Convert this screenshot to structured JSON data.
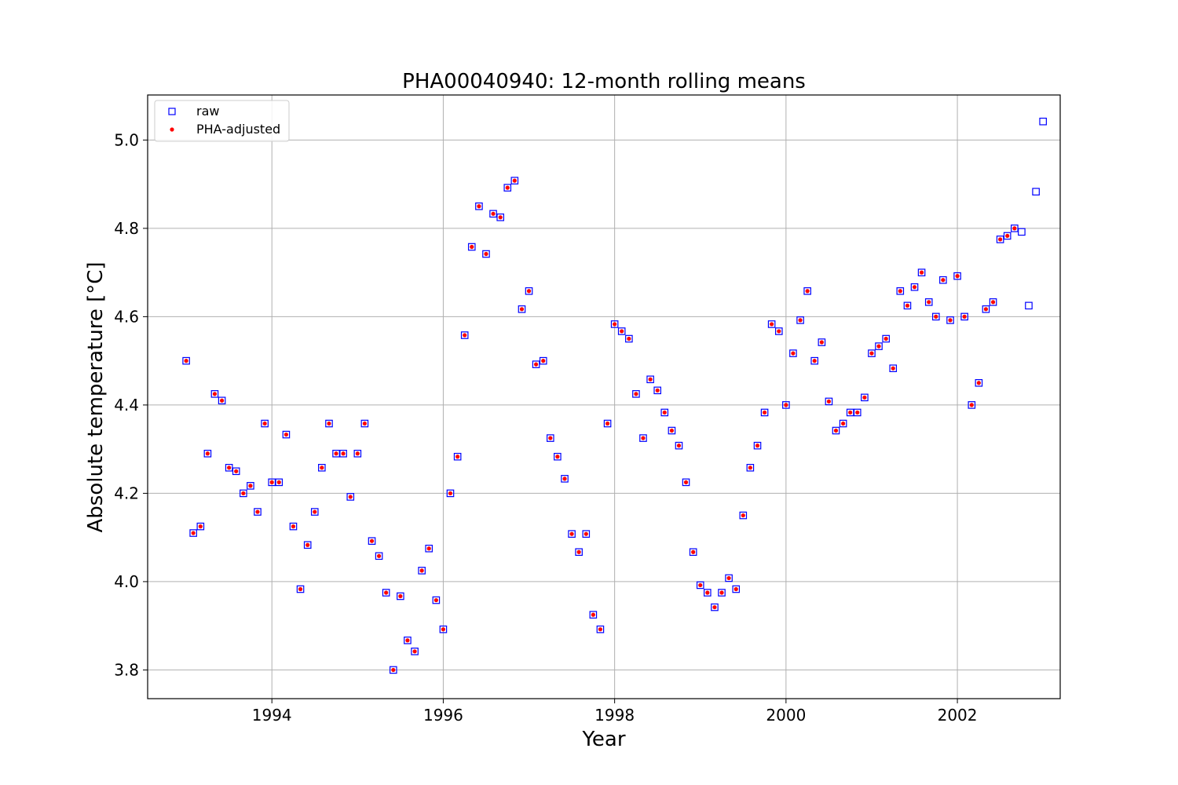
{
  "chart_data": {
    "type": "scatter",
    "title": "PHA00040940: 12-month rolling means",
    "xlabel": "Year",
    "ylabel": "Absolute temperature [°C]",
    "xlim": [
      1992.55,
      2003.2
    ],
    "ylim": [
      3.735,
      5.102
    ],
    "xticks": [
      1994,
      1996,
      1998,
      2000,
      2002
    ],
    "yticks": [
      3.8,
      4.0,
      4.2,
      4.4,
      4.6,
      4.8,
      5.0
    ],
    "ytick_labels": [
      "3.8",
      "4.0",
      "4.2",
      "4.4",
      "4.6",
      "4.8",
      "5.0"
    ],
    "grid": true,
    "legend_position": "top-left",
    "series": [
      {
        "name": "raw",
        "marker": "open-square",
        "color": "#0000ff",
        "points": [
          [
            1993.0,
            4.5
          ],
          [
            1993.083,
            4.11
          ],
          [
            1993.167,
            4.125
          ],
          [
            1993.25,
            4.29
          ],
          [
            1993.333,
            4.425
          ],
          [
            1993.417,
            4.41
          ],
          [
            1993.5,
            4.258
          ],
          [
            1993.583,
            4.25
          ],
          [
            1993.667,
            4.2
          ],
          [
            1993.75,
            4.217
          ],
          [
            1993.833,
            4.158
          ],
          [
            1993.917,
            4.358
          ],
          [
            1994.0,
            4.225
          ],
          [
            1994.083,
            4.225
          ],
          [
            1994.167,
            4.333
          ],
          [
            1994.25,
            4.125
          ],
          [
            1994.333,
            3.983
          ],
          [
            1994.417,
            4.083
          ],
          [
            1994.5,
            4.158
          ],
          [
            1994.583,
            4.258
          ],
          [
            1994.667,
            4.358
          ],
          [
            1994.75,
            4.29
          ],
          [
            1994.833,
            4.29
          ],
          [
            1994.917,
            4.192
          ],
          [
            1995.0,
            4.29
          ],
          [
            1995.083,
            4.358
          ],
          [
            1995.167,
            4.092
          ],
          [
            1995.25,
            4.058
          ],
          [
            1995.333,
            3.975
          ],
          [
            1995.417,
            3.8
          ],
          [
            1995.5,
            3.967
          ],
          [
            1995.583,
            3.867
          ],
          [
            1995.667,
            3.842
          ],
          [
            1995.75,
            4.025
          ],
          [
            1995.833,
            4.075
          ],
          [
            1995.917,
            3.958
          ],
          [
            1996.0,
            3.892
          ],
          [
            1996.083,
            4.2
          ],
          [
            1996.167,
            4.283
          ],
          [
            1996.25,
            4.558
          ],
          [
            1996.333,
            4.758
          ],
          [
            1996.417,
            4.85
          ],
          [
            1996.5,
            4.742
          ],
          [
            1996.583,
            4.833
          ],
          [
            1996.667,
            4.825
          ],
          [
            1996.75,
            4.892
          ],
          [
            1996.833,
            4.908
          ],
          [
            1996.917,
            4.617
          ],
          [
            1997.0,
            4.658
          ],
          [
            1997.083,
            4.492
          ],
          [
            1997.167,
            4.5
          ],
          [
            1997.25,
            4.325
          ],
          [
            1997.333,
            4.283
          ],
          [
            1997.417,
            4.233
          ],
          [
            1997.5,
            4.108
          ],
          [
            1997.583,
            4.067
          ],
          [
            1997.667,
            4.108
          ],
          [
            1997.75,
            3.925
          ],
          [
            1997.833,
            3.892
          ],
          [
            1997.917,
            4.358
          ],
          [
            1998.0,
            4.583
          ],
          [
            1998.083,
            4.567
          ],
          [
            1998.167,
            4.55
          ],
          [
            1998.25,
            4.425
          ],
          [
            1998.333,
            4.325
          ],
          [
            1998.417,
            4.458
          ],
          [
            1998.5,
            4.433
          ],
          [
            1998.583,
            4.383
          ],
          [
            1998.667,
            4.342
          ],
          [
            1998.75,
            4.308
          ],
          [
            1998.833,
            4.225
          ],
          [
            1998.917,
            4.067
          ],
          [
            1999.0,
            3.992
          ],
          [
            1999.083,
            3.975
          ],
          [
            1999.167,
            3.942
          ],
          [
            1999.25,
            3.975
          ],
          [
            1999.333,
            4.008
          ],
          [
            1999.417,
            3.983
          ],
          [
            1999.5,
            4.15
          ],
          [
            1999.583,
            4.258
          ],
          [
            1999.667,
            4.308
          ],
          [
            1999.75,
            4.383
          ],
          [
            1999.833,
            4.583
          ],
          [
            1999.917,
            4.567
          ],
          [
            2000.0,
            4.4
          ],
          [
            2000.083,
            4.517
          ],
          [
            2000.167,
            4.592
          ],
          [
            2000.25,
            4.658
          ],
          [
            2000.333,
            4.5
          ],
          [
            2000.417,
            4.542
          ],
          [
            2000.5,
            4.408
          ],
          [
            2000.583,
            4.342
          ],
          [
            2000.667,
            4.358
          ],
          [
            2000.75,
            4.383
          ],
          [
            2000.833,
            4.383
          ],
          [
            2000.917,
            4.417
          ],
          [
            2001.0,
            4.517
          ],
          [
            2001.083,
            4.533
          ],
          [
            2001.167,
            4.55
          ],
          [
            2001.25,
            4.483
          ],
          [
            2001.333,
            4.658
          ],
          [
            2001.417,
            4.625
          ],
          [
            2001.5,
            4.667
          ],
          [
            2001.583,
            4.7
          ],
          [
            2001.667,
            4.633
          ],
          [
            2001.75,
            4.6
          ],
          [
            2001.833,
            4.683
          ],
          [
            2001.917,
            4.592
          ],
          [
            2002.0,
            4.692
          ],
          [
            2002.083,
            4.6
          ],
          [
            2002.167,
            4.4
          ],
          [
            2002.25,
            4.45
          ],
          [
            2002.333,
            4.617
          ],
          [
            2002.417,
            4.633
          ],
          [
            2002.5,
            4.775
          ],
          [
            2002.583,
            4.783
          ],
          [
            2002.667,
            4.8
          ],
          [
            2002.75,
            4.792
          ],
          [
            2002.833,
            4.625
          ],
          [
            2002.917,
            4.883
          ],
          [
            2003.0,
            5.042
          ]
        ]
      },
      {
        "name": "PHA-adjusted",
        "marker": "dot",
        "color": "#ff0000",
        "points": [
          [
            1993.0,
            4.5
          ],
          [
            1993.083,
            4.11
          ],
          [
            1993.167,
            4.125
          ],
          [
            1993.25,
            4.29
          ],
          [
            1993.333,
            4.425
          ],
          [
            1993.417,
            4.41
          ],
          [
            1993.5,
            4.258
          ],
          [
            1993.583,
            4.25
          ],
          [
            1993.667,
            4.2
          ],
          [
            1993.75,
            4.217
          ],
          [
            1993.833,
            4.158
          ],
          [
            1993.917,
            4.358
          ],
          [
            1994.0,
            4.225
          ],
          [
            1994.083,
            4.225
          ],
          [
            1994.167,
            4.333
          ],
          [
            1994.25,
            4.125
          ],
          [
            1994.333,
            3.983
          ],
          [
            1994.417,
            4.083
          ],
          [
            1994.5,
            4.158
          ],
          [
            1994.583,
            4.258
          ],
          [
            1994.667,
            4.358
          ],
          [
            1994.75,
            4.29
          ],
          [
            1994.833,
            4.29
          ],
          [
            1994.917,
            4.192
          ],
          [
            1995.0,
            4.29
          ],
          [
            1995.083,
            4.358
          ],
          [
            1995.167,
            4.092
          ],
          [
            1995.25,
            4.058
          ],
          [
            1995.333,
            3.975
          ],
          [
            1995.417,
            3.8
          ],
          [
            1995.5,
            3.967
          ],
          [
            1995.583,
            3.867
          ],
          [
            1995.667,
            3.842
          ],
          [
            1995.75,
            4.025
          ],
          [
            1995.833,
            4.075
          ],
          [
            1995.917,
            3.958
          ],
          [
            1996.0,
            3.892
          ],
          [
            1996.083,
            4.2
          ],
          [
            1996.167,
            4.283
          ],
          [
            1996.25,
            4.558
          ],
          [
            1996.333,
            4.758
          ],
          [
            1996.417,
            4.85
          ],
          [
            1996.5,
            4.742
          ],
          [
            1996.583,
            4.833
          ],
          [
            1996.667,
            4.825
          ],
          [
            1996.75,
            4.892
          ],
          [
            1996.833,
            4.908
          ],
          [
            1996.917,
            4.617
          ],
          [
            1997.0,
            4.658
          ],
          [
            1997.083,
            4.492
          ],
          [
            1997.167,
            4.5
          ],
          [
            1997.25,
            4.325
          ],
          [
            1997.333,
            4.283
          ],
          [
            1997.417,
            4.233
          ],
          [
            1997.5,
            4.108
          ],
          [
            1997.583,
            4.067
          ],
          [
            1997.667,
            4.108
          ],
          [
            1997.75,
            3.925
          ],
          [
            1997.833,
            3.892
          ],
          [
            1997.917,
            4.358
          ],
          [
            1998.0,
            4.583
          ],
          [
            1998.083,
            4.567
          ],
          [
            1998.167,
            4.55
          ],
          [
            1998.25,
            4.425
          ],
          [
            1998.333,
            4.325
          ],
          [
            1998.417,
            4.458
          ],
          [
            1998.5,
            4.433
          ],
          [
            1998.583,
            4.383
          ],
          [
            1998.667,
            4.342
          ],
          [
            1998.75,
            4.308
          ],
          [
            1998.833,
            4.225
          ],
          [
            1998.917,
            4.067
          ],
          [
            1999.0,
            3.992
          ],
          [
            1999.083,
            3.975
          ],
          [
            1999.167,
            3.942
          ],
          [
            1999.25,
            3.975
          ],
          [
            1999.333,
            4.008
          ],
          [
            1999.417,
            3.983
          ],
          [
            1999.5,
            4.15
          ],
          [
            1999.583,
            4.258
          ],
          [
            1999.667,
            4.308
          ],
          [
            1999.75,
            4.383
          ],
          [
            1999.833,
            4.583
          ],
          [
            1999.917,
            4.567
          ],
          [
            2000.0,
            4.4
          ],
          [
            2000.083,
            4.517
          ],
          [
            2000.167,
            4.592
          ],
          [
            2000.25,
            4.658
          ],
          [
            2000.333,
            4.5
          ],
          [
            2000.417,
            4.542
          ],
          [
            2000.5,
            4.408
          ],
          [
            2000.583,
            4.342
          ],
          [
            2000.667,
            4.358
          ],
          [
            2000.75,
            4.383
          ],
          [
            2000.833,
            4.383
          ],
          [
            2000.917,
            4.417
          ],
          [
            2001.0,
            4.517
          ],
          [
            2001.083,
            4.533
          ],
          [
            2001.167,
            4.55
          ],
          [
            2001.25,
            4.483
          ],
          [
            2001.333,
            4.658
          ],
          [
            2001.417,
            4.625
          ],
          [
            2001.5,
            4.667
          ],
          [
            2001.583,
            4.7
          ],
          [
            2001.667,
            4.633
          ],
          [
            2001.75,
            4.6
          ],
          [
            2001.833,
            4.683
          ],
          [
            2001.917,
            4.592
          ],
          [
            2002.0,
            4.692
          ],
          [
            2002.083,
            4.6
          ],
          [
            2002.167,
            4.4
          ],
          [
            2002.25,
            4.45
          ],
          [
            2002.333,
            4.617
          ],
          [
            2002.417,
            4.633
          ],
          [
            2002.5,
            4.775
          ],
          [
            2002.583,
            4.783
          ],
          [
            2002.667,
            4.8
          ]
        ]
      }
    ]
  }
}
